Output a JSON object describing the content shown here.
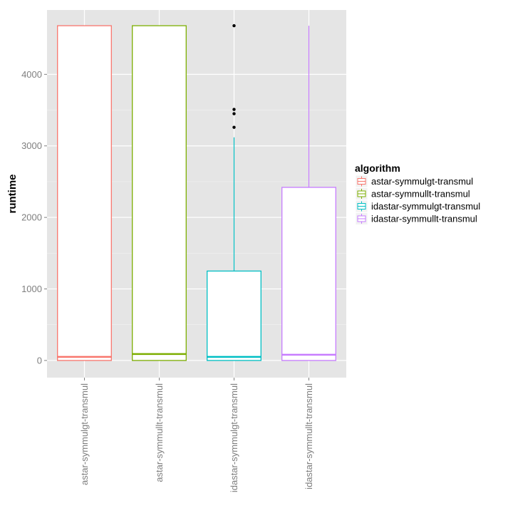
{
  "chart_data": {
    "type": "boxplot",
    "ylabel": "runtime",
    "legend_title": "algorithm",
    "legend_position": "right",
    "grid": true,
    "ylim": [
      -240,
      4900
    ],
    "yticks": [
      0,
      1000,
      2000,
      3000,
      4000
    ],
    "categories": [
      "astar-symmulgt-transmul",
      "astar-symmullt-transmul",
      "idastar-symmulgt-transmul",
      "idastar-symmullt-transmul"
    ],
    "colors": [
      "#F8766D",
      "#7CAE00",
      "#00BFC4",
      "#C77CFF"
    ],
    "boxes": [
      {
        "category": "astar-symmulgt-transmul",
        "min": 0,
        "q1": 0,
        "median": 50,
        "q3": 4680,
        "max": 4680,
        "outliers": []
      },
      {
        "category": "astar-symmullt-transmul",
        "min": 0,
        "q1": 0,
        "median": 90,
        "q3": 4680,
        "max": 4680,
        "outliers": []
      },
      {
        "category": "idastar-symmulgt-transmul",
        "min": 0,
        "q1": 0,
        "median": 50,
        "q3": 1250,
        "max": 3120,
        "outliers": [
          3260,
          3450,
          3510,
          4680
        ]
      },
      {
        "category": "idastar-symmullt-transmul",
        "min": 0,
        "q1": 0,
        "median": 80,
        "q3": 2420,
        "max": 4680,
        "outliers": []
      }
    ]
  }
}
